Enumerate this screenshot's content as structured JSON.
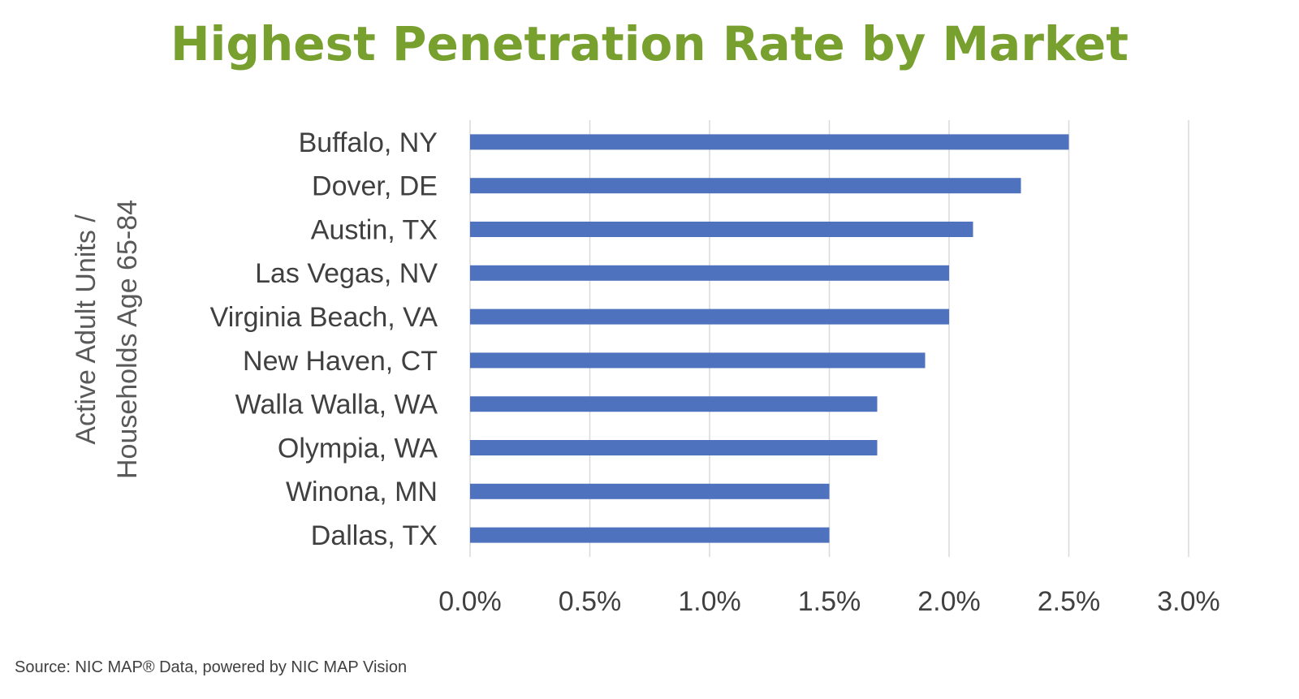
{
  "chart_data": {
    "type": "bar",
    "orientation": "horizontal",
    "title": "Highest Penetration Rate by Market",
    "ylabel_lines": [
      "Active Adult Units /",
      "Households Age 65-84"
    ],
    "xlabel": "",
    "categories": [
      "Buffalo, NY",
      "Dover, DE",
      "Austin, TX",
      "Las Vegas, NV",
      "Virginia Beach, VA",
      "New Haven, CT",
      "Walla Walla, WA",
      "Olympia, WA",
      "Winona, MN",
      "Dallas, TX"
    ],
    "values": [
      2.5,
      2.3,
      2.1,
      2.0,
      2.0,
      1.9,
      1.7,
      1.7,
      1.5,
      1.5
    ],
    "value_unit": "%",
    "xlim": [
      0,
      3.0
    ],
    "xticks": [
      0,
      0.5,
      1.0,
      1.5,
      2.0,
      2.5,
      3.0
    ],
    "xtick_labels": [
      "0.0%",
      "0.5%",
      "1.0%",
      "1.5%",
      "2.0%",
      "2.5%",
      "3.0%"
    ],
    "grid": true,
    "bar_color": "#4f72be",
    "title_color": "#77a02f"
  },
  "source_note": "Source: NIC MAP® Data, powered by NIC MAP Vision"
}
